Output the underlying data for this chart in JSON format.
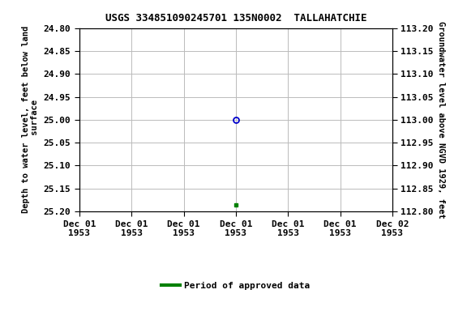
{
  "title": "USGS 334851090245701 135N0002  TALLAHATCHIE",
  "ylabel_left": "Depth to water level, feet below land\n surface",
  "ylabel_right": "Groundwater level above NGVD 1929, feet",
  "ylim_left": [
    25.2,
    24.8
  ],
  "ylim_right": [
    112.8,
    113.2
  ],
  "yticks_left": [
    24.8,
    24.85,
    24.9,
    24.95,
    25.0,
    25.05,
    25.1,
    25.15,
    25.2
  ],
  "yticks_right": [
    112.8,
    112.85,
    112.9,
    112.95,
    113.0,
    113.05,
    113.1,
    113.15,
    113.2
  ],
  "xlim": [
    0,
    6
  ],
  "xtick_positions": [
    0,
    1,
    2,
    3,
    4,
    5,
    6
  ],
  "xtick_labels": [
    "Dec 01\n1953",
    "Dec 01\n1953",
    "Dec 01\n1953",
    "Dec 01\n1953",
    "Dec 01\n1953",
    "Dec 01\n1953",
    "Dec 02\n1953"
  ],
  "data_point_x": 3.0,
  "data_point_y": 25.0,
  "data_point_color": "#0000cc",
  "green_marker_x": 3.0,
  "green_marker_y": 25.185,
  "green_marker_color": "#008000",
  "legend_label": "Period of approved data",
  "bg_color": "#ffffff",
  "grid_color": "#bbbbbb",
  "font_family": "monospace",
  "title_fontsize": 9,
  "tick_fontsize": 8,
  "ylabel_fontsize": 7.5
}
